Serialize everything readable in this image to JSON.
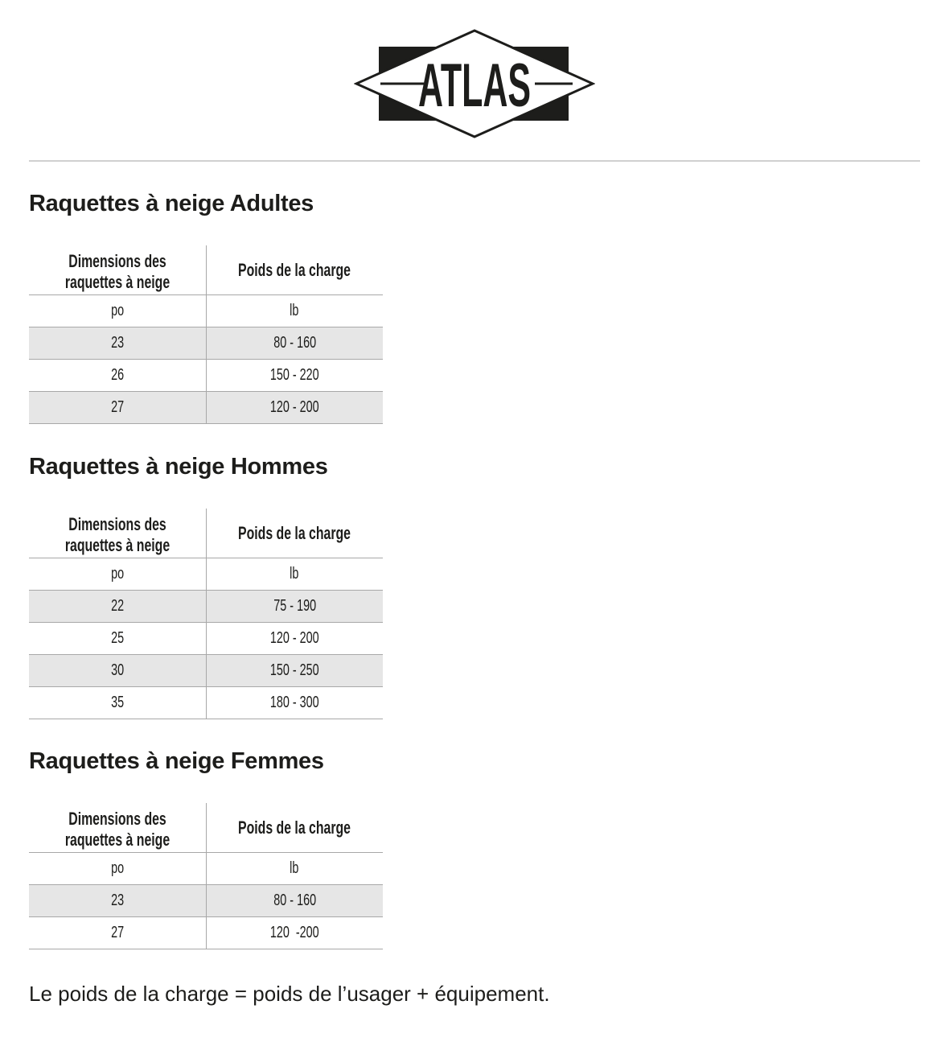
{
  "logo": {
    "text": "ATLAS"
  },
  "columns": {
    "size": "Dimensions des raquettes à neige",
    "load": "Poids de la charge"
  },
  "units": {
    "size": "po",
    "load": "lb"
  },
  "sections": [
    {
      "title": "Raquettes à neige Adultes",
      "rows": [
        {
          "size": "23",
          "load": "80 - 160"
        },
        {
          "size": "26",
          "load": "150 - 220"
        },
        {
          "size": "27",
          "load": "120 - 200"
        }
      ]
    },
    {
      "title": "Raquettes à neige Hommes",
      "rows": [
        {
          "size": "22",
          "load": "75 - 190"
        },
        {
          "size": "25",
          "load": "120 - 200"
        },
        {
          "size": "30",
          "load": "150 - 250"
        },
        {
          "size": "35",
          "load": "180 - 300"
        }
      ]
    },
    {
      "title": "Raquettes à neige Femmes",
      "rows": [
        {
          "size": "23",
          "load": "80 - 160"
        },
        {
          "size": "27",
          "load": "120  -200"
        }
      ]
    }
  ],
  "footer": "Le poids de la charge = poids de l’usager + équipement."
}
